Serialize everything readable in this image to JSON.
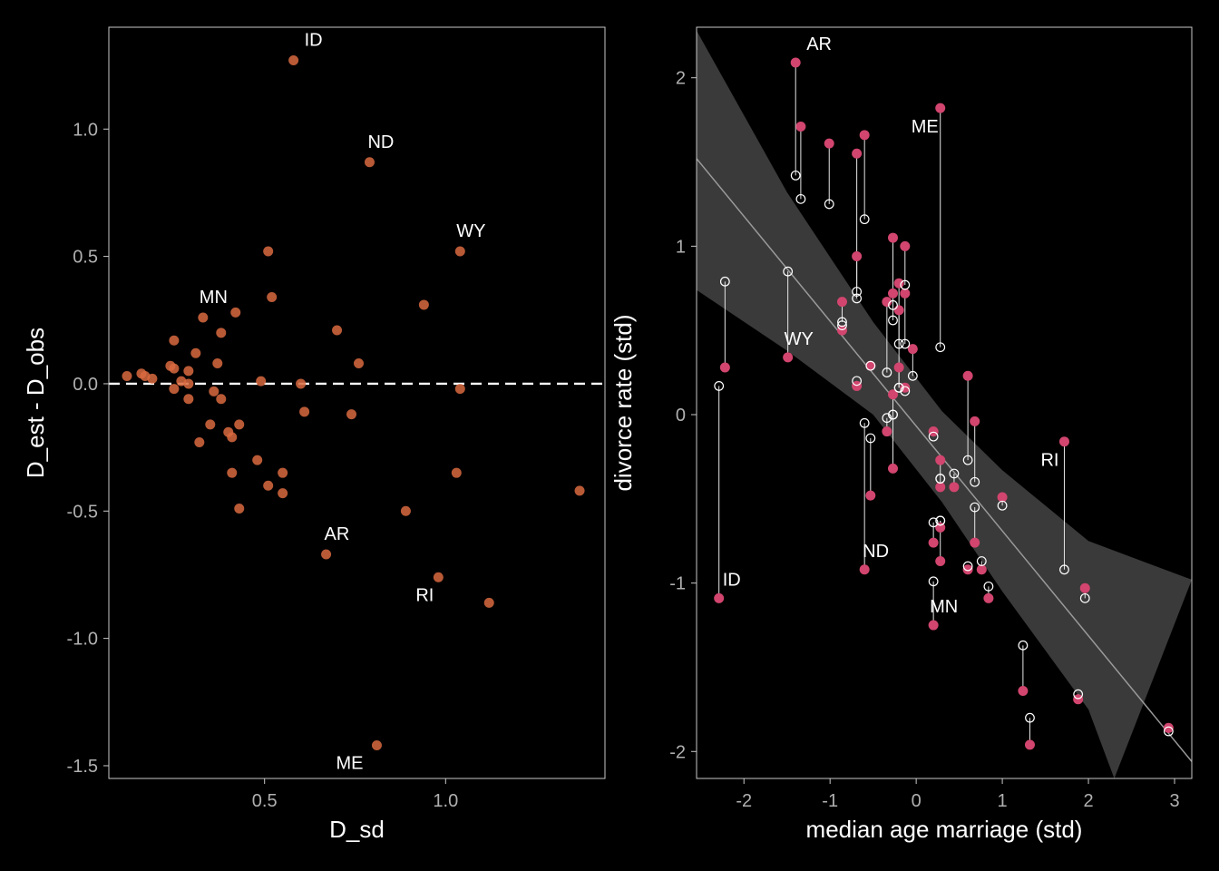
{
  "chart_data": [
    {
      "type": "scatter",
      "xlabel": "D_sd",
      "ylabel": "D_est - D_obs",
      "xlim": [
        0.07,
        1.44
      ],
      "ylim": [
        -1.55,
        1.4
      ],
      "xticks": [
        0.5,
        1.0
      ],
      "xtick_labels": [
        "0.5",
        "1.0"
      ],
      "yticks": [
        1.0,
        0.5,
        0.0,
        -0.5,
        -1.0,
        -1.5
      ],
      "ytick_labels": [
        "1.0",
        "0.5",
        "0.0",
        "-0.5",
        "-1.0",
        "-1.5"
      ],
      "reference_line": {
        "y": 0,
        "style": "dashed",
        "color": "#ffffff"
      },
      "point_color": "#d96a3f",
      "points": [
        [
          0.58,
          1.27
        ],
        [
          0.79,
          0.87
        ],
        [
          1.04,
          0.52
        ],
        [
          0.51,
          0.52
        ],
        [
          0.52,
          0.34
        ],
        [
          0.94,
          0.31
        ],
        [
          0.42,
          0.28
        ],
        [
          0.33,
          0.26
        ],
        [
          0.38,
          0.2
        ],
        [
          0.7,
          0.21
        ],
        [
          0.25,
          0.17
        ],
        [
          0.31,
          0.12
        ],
        [
          0.37,
          0.08
        ],
        [
          0.76,
          0.08
        ],
        [
          0.24,
          0.07
        ],
        [
          0.25,
          0.06
        ],
        [
          0.29,
          0.05
        ],
        [
          0.16,
          0.04
        ],
        [
          0.17,
          0.03
        ],
        [
          0.12,
          0.03
        ],
        [
          0.19,
          0.02
        ],
        [
          0.27,
          0.01
        ],
        [
          0.49,
          0.01
        ],
        [
          0.6,
          0.0
        ],
        [
          0.29,
          0.0
        ],
        [
          0.25,
          -0.02
        ],
        [
          0.36,
          -0.03
        ],
        [
          1.04,
          -0.02
        ],
        [
          0.29,
          -0.06
        ],
        [
          0.38,
          -0.06
        ],
        [
          0.61,
          -0.11
        ],
        [
          0.74,
          -0.12
        ],
        [
          0.35,
          -0.16
        ],
        [
          0.43,
          -0.16
        ],
        [
          0.4,
          -0.19
        ],
        [
          0.41,
          -0.21
        ],
        [
          0.32,
          -0.23
        ],
        [
          0.48,
          -0.3
        ],
        [
          0.41,
          -0.35
        ],
        [
          0.55,
          -0.35
        ],
        [
          1.03,
          -0.35
        ],
        [
          0.51,
          -0.4
        ],
        [
          0.55,
          -0.43
        ],
        [
          1.37,
          -0.42
        ],
        [
          0.43,
          -0.49
        ],
        [
          0.89,
          -0.5
        ],
        [
          0.67,
          -0.67
        ],
        [
          0.98,
          -0.76
        ],
        [
          1.12,
          -0.86
        ],
        [
          0.81,
          -1.42
        ]
      ],
      "annotations": [
        {
          "text": "ID",
          "x": 0.58,
          "y": 1.27,
          "dx": 12,
          "dy": -16
        },
        {
          "text": "ND",
          "x": 0.79,
          "y": 0.87,
          "dx": -2,
          "dy": -16
        },
        {
          "text": "WY",
          "x": 1.04,
          "y": 0.52,
          "dx": -4,
          "dy": -16
        },
        {
          "text": "MN",
          "x": 0.33,
          "y": 0.26,
          "dx": -4,
          "dy": -16
        },
        {
          "text": "AR",
          "x": 0.67,
          "y": -0.67,
          "dx": -2,
          "dy": -16
        },
        {
          "text": "RI",
          "x": 0.98,
          "y": -0.76,
          "dx": -25,
          "dy": 26
        },
        {
          "text": "ME",
          "x": 0.81,
          "y": -1.42,
          "dx": -45,
          "dy": 26
        }
      ]
    },
    {
      "type": "scatter",
      "xlabel": "median age marriage (std)",
      "ylabel": "divorce rate (std)",
      "xlim": [
        -2.55,
        3.2
      ],
      "ylim": [
        -2.16,
        2.3
      ],
      "xticks": [
        -2,
        -1,
        0,
        1,
        2,
        3
      ],
      "xtick_labels": [
        "-2",
        "-1",
        "0",
        "1",
        "2",
        "3"
      ],
      "yticks": [
        2,
        1,
        0,
        -1,
        -2
      ],
      "ytick_labels": [
        "2",
        "1",
        "0",
        "-1",
        "-2"
      ],
      "regression": {
        "line": [
          [
            -2.55,
            1.52
          ],
          [
            3.2,
            -2.06
          ]
        ],
        "band_upper": [
          [
            -2.55,
            2.28
          ],
          [
            -1.5,
            1.32
          ],
          [
            -0.5,
            0.55
          ],
          [
            0.3,
            0.02
          ],
          [
            1.0,
            -0.33
          ],
          [
            2.0,
            -0.75
          ],
          [
            3.2,
            -0.98
          ]
        ],
        "band_lower": [
          [
            -2.55,
            0.74
          ],
          [
            -1.5,
            0.38
          ],
          [
            -0.5,
            0.0
          ],
          [
            0.3,
            -0.52
          ],
          [
            1.0,
            -1.05
          ],
          [
            2.0,
            -1.75
          ],
          [
            2.3,
            -2.16
          ]
        ],
        "line_color": "#9a9a9a",
        "band_color": "#3a3a3a"
      },
      "observed_color": "#d1456e",
      "estimated_color": "#ffffff",
      "points": [
        {
          "x": -1.4,
          "obs": 2.09,
          "est": 1.42
        },
        {
          "x": -1.34,
          "obs": 1.71,
          "est": 1.28
        },
        {
          "x": -1.01,
          "obs": 1.61,
          "est": 1.25
        },
        {
          "x": -0.6,
          "obs": 1.66,
          "est": 1.16
        },
        {
          "x": -0.69,
          "obs": 1.55,
          "est": 0.69
        },
        {
          "x": -0.69,
          "obs": 0.94,
          "est": 0.73
        },
        {
          "x": 0.28,
          "obs": 1.82,
          "est": 0.4
        },
        {
          "x": -0.86,
          "obs": 0.67,
          "est": 0.55
        },
        {
          "x": -0.86,
          "obs": 0.5,
          "est": 0.53
        },
        {
          "x": -1.49,
          "obs": 0.34,
          "est": 0.85
        },
        {
          "x": -2.22,
          "obs": 0.28,
          "est": 0.79
        },
        {
          "x": -2.29,
          "obs": -1.09,
          "est": 0.17
        },
        {
          "x": -0.27,
          "obs": 1.05,
          "est": 0.65
        },
        {
          "x": -0.13,
          "obs": 1.0,
          "est": 0.77
        },
        {
          "x": -0.2,
          "obs": 0.78,
          "est": 0.42
        },
        {
          "x": -0.13,
          "obs": 0.72,
          "est": 0.42
        },
        {
          "x": -0.27,
          "obs": 0.72,
          "est": 0.56
        },
        {
          "x": -0.34,
          "obs": 0.67,
          "est": 0.25
        },
        {
          "x": -0.2,
          "obs": 0.62,
          "est": 0.16
        },
        {
          "x": -0.04,
          "obs": 0.39,
          "est": 0.23
        },
        {
          "x": -0.2,
          "obs": 0.28,
          "est": 0.16
        },
        {
          "x": -0.13,
          "obs": 0.16,
          "est": 0.14
        },
        {
          "x": -0.53,
          "obs": 0.29,
          "est": 0.29
        },
        {
          "x": -0.69,
          "obs": 0.17,
          "est": 0.2
        },
        {
          "x": -0.27,
          "obs": 0.12,
          "est": 0.0
        },
        {
          "x": -0.34,
          "obs": -0.1,
          "est": -0.02
        },
        {
          "x": -0.27,
          "obs": -0.32,
          "est": 0.0
        },
        {
          "x": -0.6,
          "obs": -0.92,
          "est": -0.05
        },
        {
          "x": -0.53,
          "obs": -0.48,
          "est": -0.14
        },
        {
          "x": 0.6,
          "obs": 0.23,
          "est": -0.27
        },
        {
          "x": 0.68,
          "obs": -0.04,
          "est": -0.4
        },
        {
          "x": 0.2,
          "obs": -0.1,
          "est": -0.13
        },
        {
          "x": 0.28,
          "obs": -0.27,
          "est": -0.38
        },
        {
          "x": 0.28,
          "obs": -0.43,
          "est": -0.38
        },
        {
          "x": 0.44,
          "obs": -0.43,
          "est": -0.35
        },
        {
          "x": 1.0,
          "obs": -0.49,
          "est": -0.54
        },
        {
          "x": 0.68,
          "obs": -0.76,
          "est": -0.55
        },
        {
          "x": 0.2,
          "obs": -0.76,
          "est": -0.64
        },
        {
          "x": 0.28,
          "obs": -0.67,
          "est": -0.63
        },
        {
          "x": 0.28,
          "obs": -0.87,
          "est": -0.63
        },
        {
          "x": 0.6,
          "obs": -0.92,
          "est": -0.9
        },
        {
          "x": 0.76,
          "obs": -0.92,
          "est": -0.87
        },
        {
          "x": 0.84,
          "obs": -1.09,
          "est": -1.02
        },
        {
          "x": 0.2,
          "obs": -1.25,
          "est": -0.99
        },
        {
          "x": 1.72,
          "obs": -0.16,
          "est": -0.92
        },
        {
          "x": 1.96,
          "obs": -1.03,
          "est": -1.09
        },
        {
          "x": 1.88,
          "obs": -1.69,
          "est": -1.66
        },
        {
          "x": 1.24,
          "obs": -1.64,
          "est": -1.37
        },
        {
          "x": 1.32,
          "obs": -1.96,
          "est": -1.8
        },
        {
          "x": 2.93,
          "obs": -1.86,
          "est": -1.88
        }
      ],
      "annotations": [
        {
          "text": "AR",
          "x": -1.4,
          "y": 2.09,
          "dx": 12,
          "dy": -14
        },
        {
          "text": "ME",
          "x": 0.28,
          "y": 1.82,
          "dx": -32,
          "dy": 27
        },
        {
          "text": "WY",
          "x": -1.49,
          "y": 0.34,
          "dx": -4,
          "dy": -14
        },
        {
          "text": "RI",
          "x": 1.72,
          "y": -0.16,
          "dx": -26,
          "dy": 27
        },
        {
          "text": "ND",
          "x": -0.6,
          "y": -0.92,
          "dx": -2,
          "dy": -14
        },
        {
          "text": "ID",
          "x": -2.29,
          "y": -1.09,
          "dx": 4,
          "dy": -14
        },
        {
          "text": "MN",
          "x": 0.2,
          "y": -1.25,
          "dx": -4,
          "dy": -14
        }
      ]
    }
  ]
}
